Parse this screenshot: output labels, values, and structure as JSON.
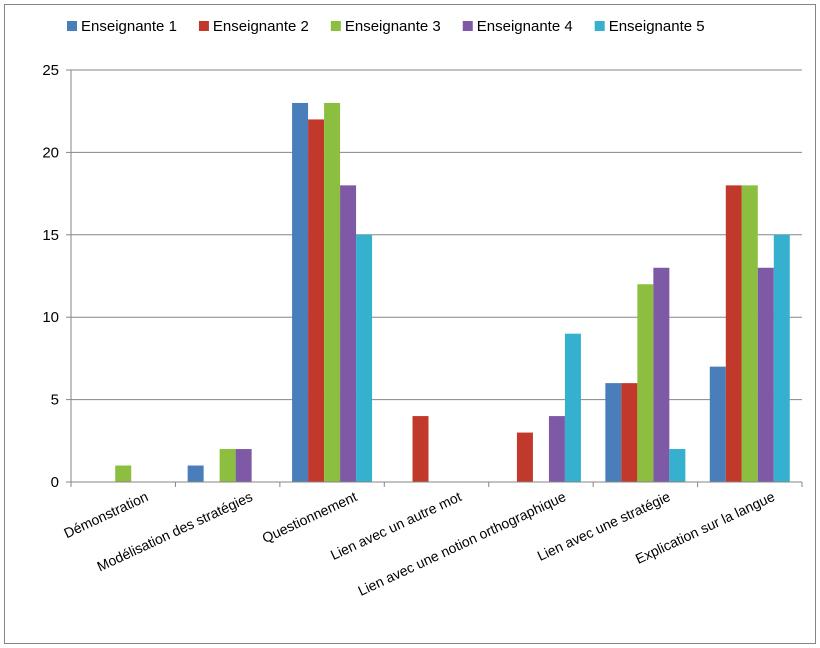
{
  "chart_data": {
    "type": "bar",
    "categories": [
      "Démonstration",
      "Modélisation des stratégies",
      "Questionnement",
      "Lien avec un autre mot",
      "Lien avec une notion orthographique",
      "Lien avec une stratégie",
      "Explication sur la langue"
    ],
    "series": [
      {
        "name": "Enseignante 1",
        "color": "#4a7ebb",
        "values": [
          0,
          1,
          23,
          0,
          0,
          6,
          7
        ]
      },
      {
        "name": "Enseignante 2",
        "color": "#c0392b",
        "values": [
          0,
          0,
          22,
          4,
          3,
          6,
          18
        ]
      },
      {
        "name": "Enseignante 3",
        "color": "#8cbf3f",
        "values": [
          1,
          2,
          23,
          0,
          0,
          12,
          18
        ]
      },
      {
        "name": "Enseignante 4",
        "color": "#7e5aa6",
        "values": [
          0,
          2,
          18,
          0,
          4,
          13,
          13
        ]
      },
      {
        "name": "Enseignante 5",
        "color": "#35b0cf",
        "values": [
          0,
          0,
          15,
          0,
          9,
          2,
          15
        ]
      }
    ],
    "yticks": [
      0,
      5,
      10,
      15,
      20,
      25
    ],
    "ylim": [
      0,
      25
    ],
    "grid": true,
    "legend": "top"
  }
}
